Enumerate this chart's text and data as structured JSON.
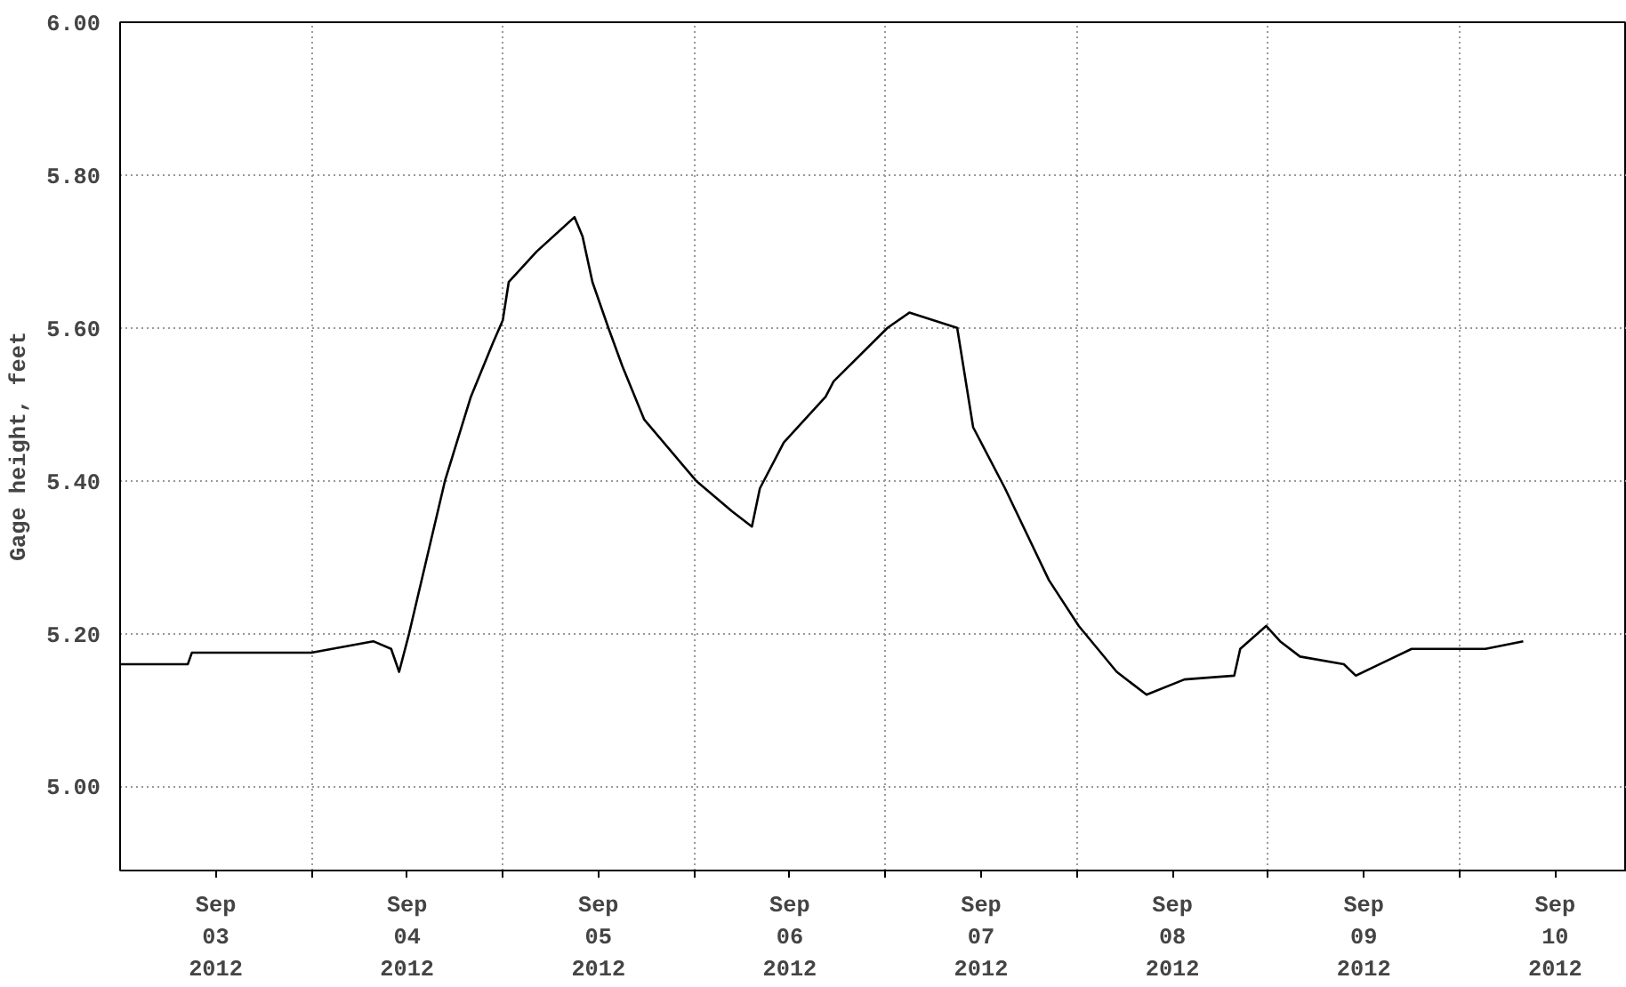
{
  "chart_data": {
    "type": "line",
    "ylabel": "Gage height, feet",
    "xlim": [
      "2012-09-03T00:00",
      "2012-09-10T21:00"
    ],
    "ylim": [
      4.89,
      6.0
    ],
    "xticks": [
      {
        "value": "2012-09-03T12:00",
        "label": "Sep\n03\n2012"
      },
      {
        "value": "2012-09-04T12:00",
        "label": "Sep\n04\n2012"
      },
      {
        "value": "2012-09-05T12:00",
        "label": "Sep\n05\n2012"
      },
      {
        "value": "2012-09-06T12:00",
        "label": "Sep\n06\n2012"
      },
      {
        "value": "2012-09-07T12:00",
        "label": "Sep\n07\n2012"
      },
      {
        "value": "2012-09-08T12:00",
        "label": "Sep\n08\n2012"
      },
      {
        "value": "2012-09-09T12:00",
        "label": "Sep\n09\n2012"
      },
      {
        "value": "2012-09-10T12:00",
        "label": "Sep\n10\n2012"
      },
      {
        "value": "2012-09-04T00:00",
        "label": null
      },
      {
        "value": "2012-09-05T00:00",
        "label": null
      },
      {
        "value": "2012-09-06T00:00",
        "label": null
      },
      {
        "value": "2012-09-07T00:00",
        "label": null
      },
      {
        "value": "2012-09-08T00:00",
        "label": null
      },
      {
        "value": "2012-09-09T00:00",
        "label": null
      },
      {
        "value": "2012-09-10T00:00",
        "label": null
      }
    ],
    "yticks": [
      {
        "value": 5.0,
        "label": "5.00"
      },
      {
        "value": 5.2,
        "label": "5.20"
      },
      {
        "value": 5.4,
        "label": "5.40"
      },
      {
        "value": 5.6,
        "label": "5.60"
      },
      {
        "value": 5.8,
        "label": "5.80"
      },
      {
        "value": 6.0,
        "label": "6.00"
      }
    ],
    "grid": true,
    "marker": "none",
    "line_style": "solid",
    "series": [
      {
        "color": "#000000",
        "x": [
          "2012-09-03T00:00",
          "2012-09-03T08:30",
          "2012-09-03T09:00",
          "2012-09-04T00:00",
          "2012-09-04T07:45",
          "2012-09-04T10:00",
          "2012-09-04T11:00",
          "2012-09-04T12:15",
          "2012-09-04T16:45",
          "2012-09-04T20:00",
          "2012-09-04T22:45",
          "2012-09-05T00:00",
          "2012-09-05T00:45",
          "2012-09-05T04:15",
          "2012-09-05T09:00",
          "2012-09-05T10:00",
          "2012-09-05T11:15",
          "2012-09-05T13:15",
          "2012-09-05T15:00",
          "2012-09-05T17:45",
          "2012-09-06T00:15",
          "2012-09-06T04:45",
          "2012-09-06T07:15",
          "2012-09-06T08:15",
          "2012-09-06T11:15",
          "2012-09-06T16:30",
          "2012-09-06T17:30",
          "2012-09-07T00:15",
          "2012-09-07T03:00",
          "2012-09-07T09:00",
          "2012-09-07T11:00",
          "2012-09-07T15:00",
          "2012-09-07T20:30",
          "2012-09-08T00:15",
          "2012-09-08T05:00",
          "2012-09-08T08:45",
          "2012-09-08T13:30",
          "2012-09-08T19:45",
          "2012-09-08T20:30",
          "2012-09-08T23:45",
          "2012-09-09T01:30",
          "2012-09-09T04:00",
          "2012-09-09T09:30",
          "2012-09-09T11:00",
          "2012-09-09T15:00",
          "2012-09-09T18:00",
          "2012-09-10T03:15",
          "2012-09-10T08:00"
        ],
        "values": [
          5.16,
          5.16,
          5.175,
          5.175,
          5.19,
          5.18,
          5.15,
          5.2,
          5.4,
          5.51,
          5.58,
          5.61,
          5.66,
          5.7,
          5.745,
          5.72,
          5.66,
          5.6,
          5.55,
          5.48,
          5.4,
          5.36,
          5.34,
          5.39,
          5.45,
          5.51,
          5.53,
          5.6,
          5.62,
          5.6,
          5.47,
          5.39,
          5.27,
          5.21,
          5.15,
          5.12,
          5.14,
          5.145,
          5.18,
          5.21,
          5.19,
          5.17,
          5.16,
          5.145,
          5.165,
          5.18,
          5.18,
          5.19
        ]
      }
    ]
  }
}
